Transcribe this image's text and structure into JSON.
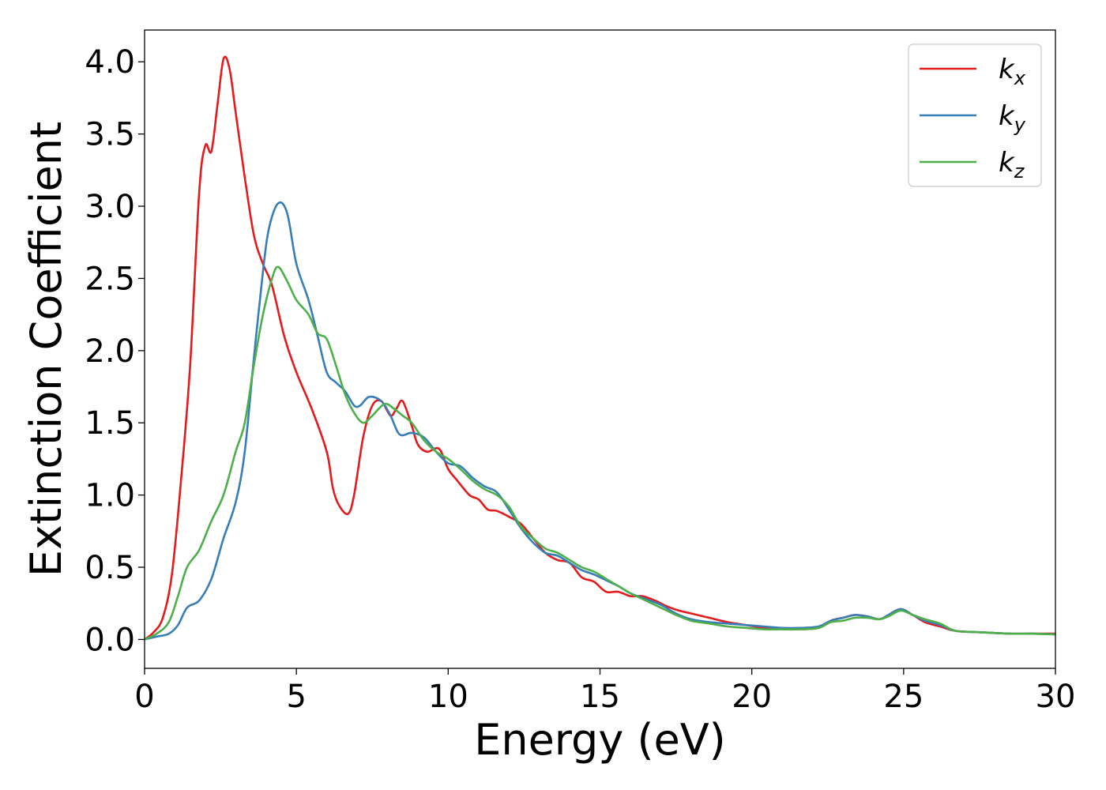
{
  "chart_data": {
    "type": "line",
    "title": "",
    "xlabel": "Energy (eV)",
    "ylabel": "Extinction Coefficient",
    "xlim": [
      0,
      30
    ],
    "ylim": [
      -0.2,
      4.22
    ],
    "xticks": [
      "0",
      "5",
      "10",
      "15",
      "20",
      "25",
      "30"
    ],
    "xtick_values": [
      0,
      5,
      10,
      15,
      20,
      25,
      30
    ],
    "yticks": [
      "0.0",
      "0.5",
      "1.0",
      "1.5",
      "2.0",
      "2.5",
      "3.0",
      "3.5",
      "4.0"
    ],
    "ytick_values": [
      0,
      0.5,
      1.0,
      1.5,
      2.0,
      2.5,
      3.0,
      3.5,
      4.0
    ],
    "grid": false,
    "legend_position": "top-right",
    "series": [
      {
        "name": "k",
        "subscript": "x",
        "color": "#e41a1c",
        "points": [
          [
            0,
            0
          ],
          [
            0.3,
            0.05
          ],
          [
            0.6,
            0.15
          ],
          [
            0.9,
            0.45
          ],
          [
            1.2,
            1.1
          ],
          [
            1.5,
            1.9
          ],
          [
            1.8,
            3.1
          ],
          [
            2.0,
            3.42
          ],
          [
            2.2,
            3.38
          ],
          [
            2.4,
            3.7
          ],
          [
            2.6,
            4.02
          ],
          [
            2.8,
            3.95
          ],
          [
            3.0,
            3.65
          ],
          [
            3.3,
            3.2
          ],
          [
            3.6,
            2.8
          ],
          [
            3.9,
            2.6
          ],
          [
            4.2,
            2.45
          ],
          [
            4.6,
            2.1
          ],
          [
            5.0,
            1.85
          ],
          [
            5.5,
            1.6
          ],
          [
            6.0,
            1.3
          ],
          [
            6.2,
            1.05
          ],
          [
            6.4,
            0.93
          ],
          [
            6.7,
            0.87
          ],
          [
            6.9,
            1.0
          ],
          [
            7.2,
            1.4
          ],
          [
            7.5,
            1.62
          ],
          [
            7.8,
            1.65
          ],
          [
            8.1,
            1.55
          ],
          [
            8.3,
            1.6
          ],
          [
            8.5,
            1.65
          ],
          [
            8.8,
            1.48
          ],
          [
            9.0,
            1.35
          ],
          [
            9.3,
            1.3
          ],
          [
            9.7,
            1.32
          ],
          [
            10.0,
            1.18
          ],
          [
            10.3,
            1.1
          ],
          [
            10.7,
            1.0
          ],
          [
            11.0,
            0.97
          ],
          [
            11.3,
            0.9
          ],
          [
            11.6,
            0.89
          ],
          [
            12.0,
            0.85
          ],
          [
            12.4,
            0.8
          ],
          [
            12.8,
            0.7
          ],
          [
            13.2,
            0.6
          ],
          [
            13.6,
            0.55
          ],
          [
            14.0,
            0.53
          ],
          [
            14.4,
            0.43
          ],
          [
            14.8,
            0.4
          ],
          [
            15.2,
            0.33
          ],
          [
            15.6,
            0.33
          ],
          [
            16.0,
            0.3
          ],
          [
            16.4,
            0.3
          ],
          [
            16.8,
            0.27
          ],
          [
            17.2,
            0.23
          ],
          [
            17.6,
            0.2
          ],
          [
            18.0,
            0.18
          ],
          [
            18.6,
            0.15
          ],
          [
            19.2,
            0.12
          ],
          [
            19.8,
            0.1
          ],
          [
            20.4,
            0.08
          ],
          [
            21.0,
            0.07
          ],
          [
            21.6,
            0.07
          ],
          [
            22.2,
            0.08
          ],
          [
            22.6,
            0.13
          ],
          [
            23.0,
            0.15
          ],
          [
            23.4,
            0.17
          ],
          [
            23.8,
            0.16
          ],
          [
            24.2,
            0.14
          ],
          [
            24.5,
            0.17
          ],
          [
            24.9,
            0.21
          ],
          [
            25.3,
            0.17
          ],
          [
            25.7,
            0.12
          ],
          [
            26.2,
            0.09
          ],
          [
            26.7,
            0.06
          ],
          [
            27.5,
            0.05
          ],
          [
            28.5,
            0.04
          ],
          [
            29.2,
            0.04
          ],
          [
            30,
            0.04
          ]
        ]
      },
      {
        "name": "k",
        "subscript": "y",
        "color": "#377eb8",
        "points": [
          [
            0,
            0
          ],
          [
            0.4,
            0.02
          ],
          [
            0.8,
            0.04
          ],
          [
            1.1,
            0.1
          ],
          [
            1.4,
            0.22
          ],
          [
            1.8,
            0.27
          ],
          [
            2.2,
            0.42
          ],
          [
            2.6,
            0.7
          ],
          [
            3.0,
            0.95
          ],
          [
            3.3,
            1.3
          ],
          [
            3.6,
            1.95
          ],
          [
            3.9,
            2.55
          ],
          [
            4.1,
            2.85
          ],
          [
            4.4,
            3.02
          ],
          [
            4.7,
            2.95
          ],
          [
            5.0,
            2.6
          ],
          [
            5.4,
            2.35
          ],
          [
            5.7,
            2.1
          ],
          [
            6.0,
            1.85
          ],
          [
            6.3,
            1.78
          ],
          [
            6.6,
            1.72
          ],
          [
            6.9,
            1.62
          ],
          [
            7.1,
            1.62
          ],
          [
            7.4,
            1.68
          ],
          [
            7.8,
            1.65
          ],
          [
            8.1,
            1.55
          ],
          [
            8.4,
            1.42
          ],
          [
            8.8,
            1.43
          ],
          [
            9.2,
            1.4
          ],
          [
            9.6,
            1.3
          ],
          [
            10.0,
            1.22
          ],
          [
            10.4,
            1.2
          ],
          [
            10.8,
            1.12
          ],
          [
            11.2,
            1.06
          ],
          [
            11.6,
            1.02
          ],
          [
            12.0,
            0.9
          ],
          [
            12.4,
            0.77
          ],
          [
            12.8,
            0.67
          ],
          [
            13.2,
            0.6
          ],
          [
            13.6,
            0.58
          ],
          [
            14.0,
            0.53
          ],
          [
            14.4,
            0.48
          ],
          [
            14.8,
            0.45
          ],
          [
            15.2,
            0.41
          ],
          [
            15.6,
            0.37
          ],
          [
            16.0,
            0.32
          ],
          [
            16.5,
            0.28
          ],
          [
            17.0,
            0.24
          ],
          [
            17.5,
            0.18
          ],
          [
            18.0,
            0.14
          ],
          [
            18.6,
            0.12
          ],
          [
            19.2,
            0.11
          ],
          [
            19.8,
            0.1
          ],
          [
            20.4,
            0.09
          ],
          [
            21.0,
            0.08
          ],
          [
            21.6,
            0.08
          ],
          [
            22.2,
            0.09
          ],
          [
            22.6,
            0.13
          ],
          [
            23.0,
            0.15
          ],
          [
            23.4,
            0.17
          ],
          [
            23.8,
            0.16
          ],
          [
            24.2,
            0.14
          ],
          [
            24.5,
            0.17
          ],
          [
            24.9,
            0.21
          ],
          [
            25.3,
            0.17
          ],
          [
            25.7,
            0.13
          ],
          [
            26.2,
            0.1
          ],
          [
            26.7,
            0.06
          ],
          [
            27.5,
            0.05
          ],
          [
            28.5,
            0.04
          ],
          [
            29.2,
            0.04
          ],
          [
            30,
            0.035
          ]
        ]
      },
      {
        "name": "k",
        "subscript": "z",
        "color": "#4daf4a",
        "points": [
          [
            0,
            0
          ],
          [
            0.4,
            0.04
          ],
          [
            0.8,
            0.12
          ],
          [
            1.1,
            0.3
          ],
          [
            1.4,
            0.5
          ],
          [
            1.8,
            0.62
          ],
          [
            2.2,
            0.82
          ],
          [
            2.6,
            1.0
          ],
          [
            3.0,
            1.3
          ],
          [
            3.3,
            1.5
          ],
          [
            3.6,
            1.9
          ],
          [
            3.9,
            2.25
          ],
          [
            4.2,
            2.5
          ],
          [
            4.4,
            2.58
          ],
          [
            4.7,
            2.48
          ],
          [
            5.0,
            2.35
          ],
          [
            5.4,
            2.25
          ],
          [
            5.7,
            2.12
          ],
          [
            6.0,
            2.08
          ],
          [
            6.3,
            1.9
          ],
          [
            6.6,
            1.7
          ],
          [
            6.9,
            1.57
          ],
          [
            7.2,
            1.5
          ],
          [
            7.5,
            1.55
          ],
          [
            7.9,
            1.63
          ],
          [
            8.2,
            1.6
          ],
          [
            8.5,
            1.55
          ],
          [
            8.8,
            1.5
          ],
          [
            9.2,
            1.38
          ],
          [
            9.6,
            1.3
          ],
          [
            10.0,
            1.25
          ],
          [
            10.4,
            1.18
          ],
          [
            10.8,
            1.1
          ],
          [
            11.2,
            1.04
          ],
          [
            11.6,
            1.0
          ],
          [
            12.0,
            0.92
          ],
          [
            12.4,
            0.78
          ],
          [
            12.8,
            0.7
          ],
          [
            13.2,
            0.63
          ],
          [
            13.6,
            0.6
          ],
          [
            14.0,
            0.55
          ],
          [
            14.4,
            0.5
          ],
          [
            14.8,
            0.47
          ],
          [
            15.2,
            0.42
          ],
          [
            15.6,
            0.37
          ],
          [
            16.0,
            0.32
          ],
          [
            16.5,
            0.27
          ],
          [
            17.0,
            0.22
          ],
          [
            17.5,
            0.17
          ],
          [
            18.0,
            0.13
          ],
          [
            18.6,
            0.11
          ],
          [
            19.2,
            0.09
          ],
          [
            19.8,
            0.08
          ],
          [
            20.4,
            0.07
          ],
          [
            21.0,
            0.07
          ],
          [
            21.6,
            0.07
          ],
          [
            22.2,
            0.08
          ],
          [
            22.6,
            0.12
          ],
          [
            23.0,
            0.13
          ],
          [
            23.4,
            0.15
          ],
          [
            23.8,
            0.15
          ],
          [
            24.2,
            0.14
          ],
          [
            24.5,
            0.16
          ],
          [
            24.9,
            0.2
          ],
          [
            25.3,
            0.17
          ],
          [
            25.7,
            0.14
          ],
          [
            26.2,
            0.11
          ],
          [
            26.7,
            0.06
          ],
          [
            27.5,
            0.05
          ],
          [
            28.5,
            0.04
          ],
          [
            29.2,
            0.04
          ],
          [
            30,
            0.035
          ]
        ]
      }
    ]
  }
}
